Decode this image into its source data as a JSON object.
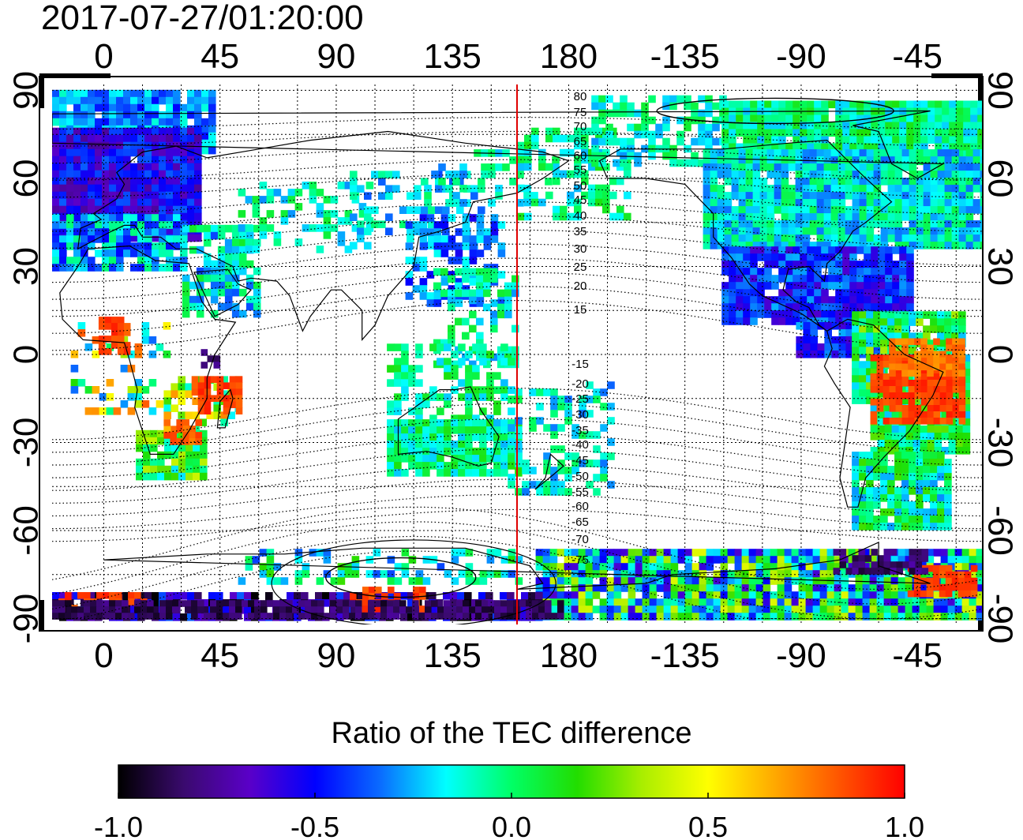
{
  "timestamp": "2017-07-27/01:20:00",
  "map": {
    "lon_labels_top": [
      "0",
      "45",
      "90",
      "135",
      "180",
      "-135",
      "-90",
      "-45"
    ],
    "lon_labels_bottom": [
      "0",
      "45",
      "90",
      "135",
      "180",
      "-135",
      "-90",
      "-45"
    ],
    "lat_labels_left": [
      "90",
      "60",
      "30",
      "0",
      "-30",
      "-60",
      "-90"
    ],
    "lat_labels_right": [
      "90",
      "60",
      "30",
      "0",
      "-30",
      "-60",
      "-90"
    ],
    "lon_range": [
      -20,
      340
    ],
    "lat_range": [
      -92,
      92
    ],
    "gridlines": "dotted",
    "terminator_longitude": 160,
    "terminator_color": "#e00000",
    "magnetic_latitude_labels": [
      "80",
      "75",
      "70",
      "65",
      "60",
      "55",
      "50",
      "45",
      "40",
      "35",
      "30",
      "25",
      "20",
      "15",
      "-15",
      "-20",
      "-25",
      "-30",
      "-35",
      "-40",
      "-45",
      "-50",
      "-55",
      "-60",
      "-65",
      "-70",
      "-75"
    ]
  },
  "colorbar": {
    "title": "Ratio of the TEC difference",
    "tick_labels": [
      "-1.0",
      "-0.5",
      "0.0",
      "0.5",
      "1.0"
    ],
    "range": [
      -1.0,
      1.0
    ],
    "colors": [
      "#000000",
      "#3a0a6e",
      "#5a00c8",
      "#0000ff",
      "#0a6cff",
      "#00ffff",
      "#00ff66",
      "#22dd00",
      "#aaee00",
      "#ffff00",
      "#ffaa00",
      "#ff5500",
      "#ff0000"
    ]
  }
}
